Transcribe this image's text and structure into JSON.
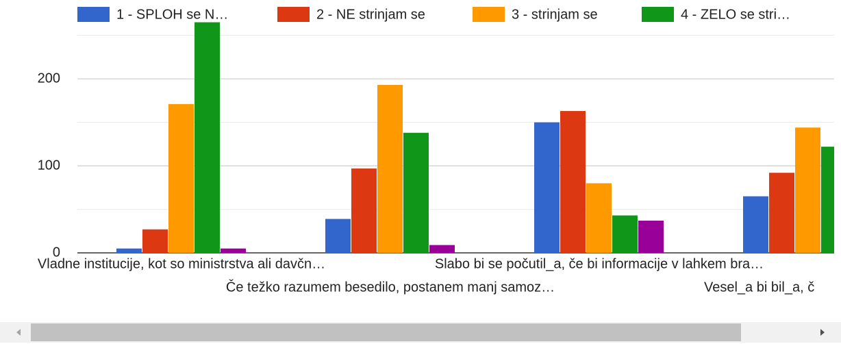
{
  "chart_data": {
    "type": "bar",
    "categories": [
      "Vladne institucije, kot so ministrstva ali davčn…",
      "Če težko razumem besedilo, postanem manj samoz…",
      "Slabo bi se počutil_a, če bi informacije v lahkem bra…",
      "Vesel_a bi bil_a, č"
    ],
    "series": [
      {
        "name": "1 - SPLOH se N…",
        "color": "#3366cc",
        "values": [
          5,
          39,
          150,
          65
        ]
      },
      {
        "name": "2 - NE strinjam se",
        "color": "#dc3912",
        "values": [
          27,
          97,
          163,
          92
        ]
      },
      {
        "name": "3 - strinjam se",
        "color": "#ff9900",
        "values": [
          171,
          193,
          80,
          144
        ]
      },
      {
        "name": "4 - ZELO se stri…",
        "color": "#109618",
        "values": [
          265,
          138,
          43,
          122
        ]
      },
      {
        "color": "#990099",
        "values": [
          5,
          9,
          37,
          null
        ]
      }
    ],
    "ylim": [
      0,
      265
    ],
    "yticks": [
      0,
      100,
      200
    ],
    "minor_yticks": [
      50,
      150,
      250
    ],
    "grid": true,
    "legend": "top"
  }
}
